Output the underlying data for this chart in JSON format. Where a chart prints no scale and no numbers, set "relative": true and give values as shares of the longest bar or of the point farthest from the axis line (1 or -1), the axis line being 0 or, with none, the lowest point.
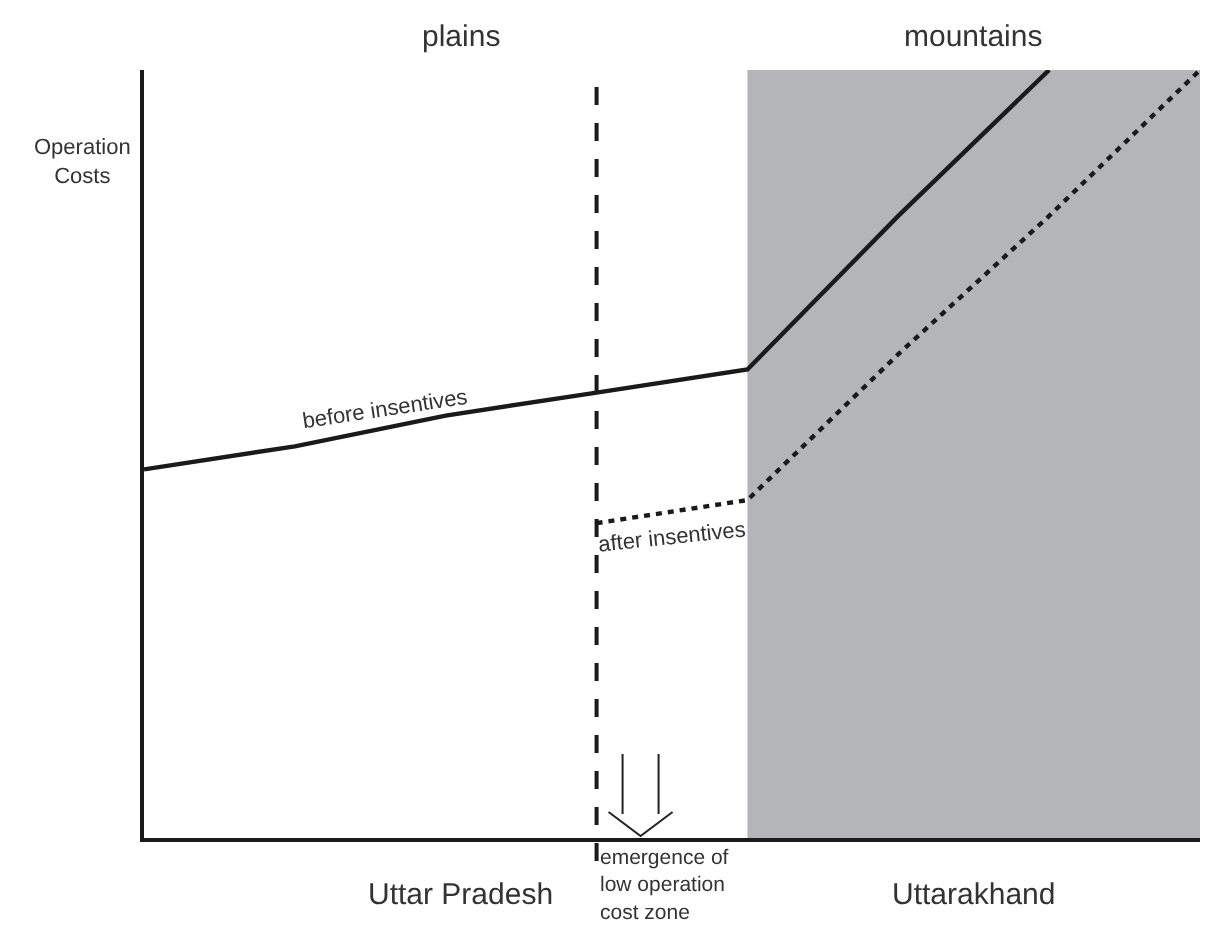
{
  "chart_data": {
    "type": "line",
    "relative": true,
    "ylabel": "Operation Costs",
    "categories": [
      null,
      null,
      null,
      null,
      null,
      null,
      null,
      null
    ],
    "series": [
      {
        "name": "before insentives",
        "color": "#1a1a1a",
        "line_style": "solid",
        "values": [
          0.48,
          0.51,
          0.55,
          0.58,
          0.61,
          0.81,
          1,
          null
        ]
      },
      {
        "name": "after insentives",
        "color": "#1a1a1a",
        "line_style": "dotted",
        "values": [
          null,
          null,
          null,
          0.41,
          0.44,
          0.63,
          0.81,
          1
        ]
      }
    ],
    "annotations": [
      "plains",
      "mountains",
      "Uttar Pradesh",
      "Uttarakhand",
      "emergence of low operation cost zone"
    ],
    "legend": false,
    "marker": "none"
  }
}
